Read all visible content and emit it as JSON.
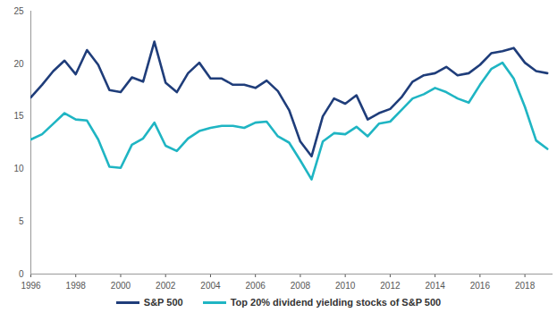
{
  "chart_data": {
    "type": "line",
    "x": [
      1996,
      1996.5,
      1997,
      1997.5,
      1998,
      1998.5,
      1999,
      1999.5,
      2000,
      2000.5,
      2001,
      2001.5,
      2002,
      2002.5,
      2003,
      2003.5,
      2004,
      2004.5,
      2005,
      2005.5,
      2006,
      2006.5,
      2007,
      2007.5,
      2008,
      2008.5,
      2009,
      2009.5,
      2010,
      2010.5,
      2011,
      2011.5,
      2012,
      2012.5,
      2013,
      2013.5,
      2014,
      2014.5,
      2015,
      2015.5,
      2016,
      2016.5,
      2017,
      2017.5,
      2018,
      2018.5,
      2019
    ],
    "series": [
      {
        "name": "S&P 500",
        "color": "#1f3d7a",
        "values": [
          16.8,
          18.0,
          19.3,
          20.3,
          19.0,
          21.3,
          19.9,
          17.5,
          17.3,
          18.7,
          18.3,
          22.1,
          18.2,
          17.3,
          19.1,
          20.1,
          18.6,
          18.6,
          18.0,
          18.0,
          17.7,
          18.4,
          17.4,
          15.6,
          12.6,
          11.2,
          15.0,
          16.7,
          16.2,
          17.0,
          14.7,
          15.3,
          15.7,
          16.8,
          18.3,
          18.9,
          19.1,
          19.7,
          18.9,
          19.1,
          19.9,
          21.0,
          21.2,
          21.5,
          20.1,
          19.3,
          19.1
        ]
      },
      {
        "name": "Top 20% dividend yielding stocks of S&P 500",
        "color": "#1fb5c3",
        "values": [
          12.8,
          13.3,
          14.3,
          15.3,
          14.7,
          14.6,
          12.8,
          10.2,
          10.1,
          12.3,
          12.9,
          14.4,
          12.2,
          11.7,
          12.9,
          13.6,
          13.9,
          14.1,
          14.1,
          13.9,
          14.4,
          14.5,
          13.1,
          12.5,
          10.8,
          9.0,
          12.6,
          13.4,
          13.3,
          14.0,
          13.1,
          14.3,
          14.5,
          15.6,
          16.7,
          17.1,
          17.7,
          17.3,
          16.7,
          16.3,
          18.0,
          19.5,
          20.1,
          18.6,
          15.9,
          12.7,
          11.9
        ]
      }
    ],
    "xlim": [
      1996,
      2019.25
    ],
    "xticks": [
      1996,
      1998,
      2000,
      2002,
      2004,
      2006,
      2008,
      2010,
      2012,
      2014,
      2016,
      2018
    ],
    "ylim": [
      0,
      25
    ],
    "yticks": [
      0,
      5,
      10,
      15,
      20,
      25
    ],
    "grid": false,
    "legend": "bottom"
  }
}
